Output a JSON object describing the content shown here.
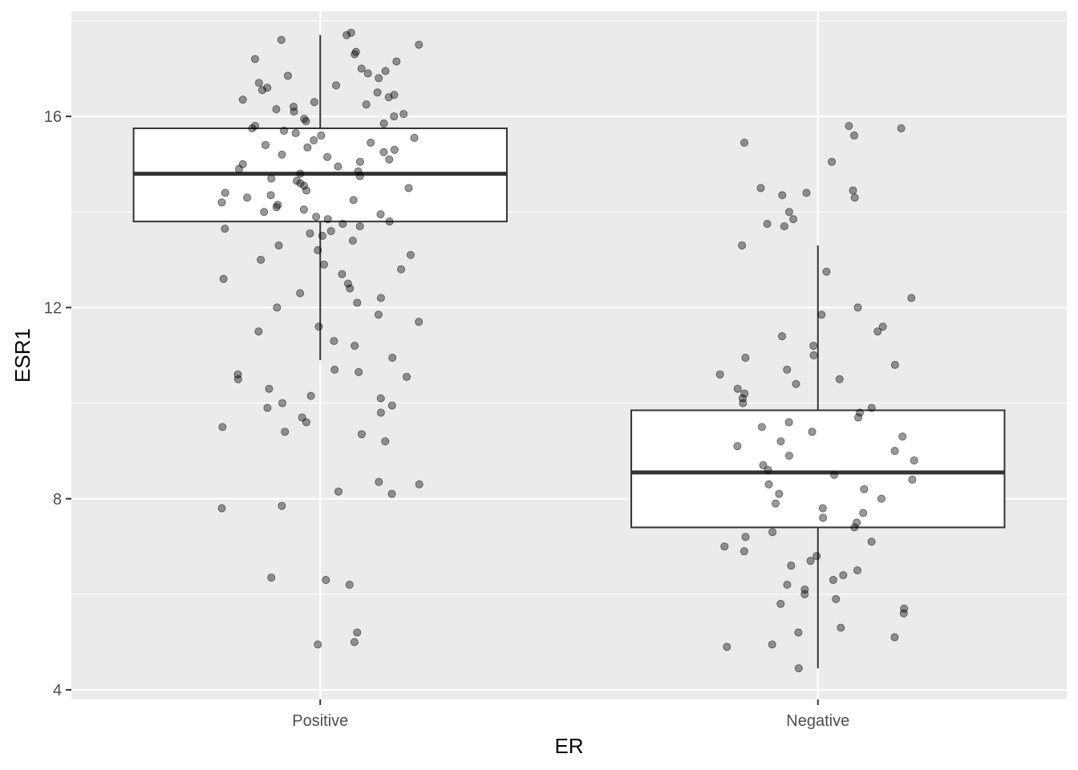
{
  "chart_data": {
    "type": "boxplot",
    "title": "",
    "xlabel": "ER",
    "ylabel": "ESR1",
    "categories": [
      "Positive",
      "Negative"
    ],
    "ylim": [
      3.8,
      18.2
    ],
    "yticks": [
      4,
      8,
      12,
      16
    ],
    "y_tick_labels": [
      "4",
      "8",
      "12",
      "16"
    ],
    "grid": true,
    "legend": "none",
    "boxes": [
      {
        "category": "Positive",
        "lower_whisker": 10.9,
        "q1": 13.8,
        "median": 14.8,
        "q3": 15.75,
        "upper_whisker": 17.7
      },
      {
        "category": "Negative",
        "lower_whisker": 4.45,
        "q1": 7.4,
        "median": 8.55,
        "q3": 9.85,
        "upper_whisker": 13.3
      }
    ],
    "jitter_points": [
      {
        "category": "Positive",
        "values": [
          17.75,
          17.6,
          17.7,
          17.5,
          17.35,
          17.3,
          17.2,
          17.15,
          17.0,
          16.95,
          16.9,
          16.85,
          16.8,
          16.7,
          16.65,
          16.6,
          16.55,
          16.5,
          16.45,
          16.4,
          16.35,
          16.3,
          16.25,
          16.2,
          16.15,
          16.1,
          16.05,
          16.0,
          15.95,
          15.9,
          15.85,
          15.8,
          15.75,
          15.7,
          15.65,
          15.6,
          15.55,
          15.5,
          15.45,
          15.4,
          15.35,
          15.3,
          15.25,
          15.2,
          15.15,
          15.1,
          15.05,
          15.0,
          14.95,
          14.9,
          14.85,
          14.8,
          14.75,
          14.7,
          14.65,
          14.6,
          14.55,
          14.5,
          14.45,
          14.4,
          14.35,
          14.3,
          14.25,
          14.2,
          14.15,
          14.1,
          14.05,
          14.0,
          13.95,
          13.9,
          13.85,
          13.8,
          13.75,
          13.7,
          13.65,
          13.6,
          13.55,
          13.5,
          13.4,
          13.3,
          13.2,
          13.1,
          13.0,
          12.9,
          12.8,
          12.7,
          12.6,
          12.5,
          12.4,
          12.3,
          12.2,
          12.1,
          12.0,
          11.85,
          11.7,
          11.6,
          11.5,
          11.3,
          11.2,
          10.95,
          10.7,
          10.65,
          10.6,
          10.55,
          10.5,
          10.3,
          10.15,
          10.1,
          10.0,
          9.95,
          9.9,
          9.8,
          9.7,
          9.6,
          9.5,
          9.4,
          9.35,
          9.2,
          8.35,
          8.3,
          8.15,
          8.1,
          7.85,
          7.8,
          6.35,
          6.3,
          6.2,
          5.2,
          5.0,
          4.95
        ]
      },
      {
        "category": "Negative",
        "values": [
          15.8,
          15.75,
          15.6,
          15.45,
          15.05,
          14.5,
          14.45,
          14.4,
          14.35,
          14.3,
          14.0,
          13.85,
          13.75,
          13.7,
          13.3,
          12.75,
          12.2,
          12.0,
          11.85,
          11.6,
          11.5,
          11.4,
          11.2,
          11.0,
          10.95,
          10.8,
          10.7,
          10.6,
          10.5,
          10.4,
          10.3,
          10.2,
          10.1,
          10.0,
          9.9,
          9.8,
          9.7,
          9.6,
          9.5,
          9.4,
          9.3,
          9.2,
          9.1,
          9.0,
          8.9,
          8.8,
          8.7,
          8.6,
          8.5,
          8.4,
          8.3,
          8.2,
          8.1,
          8.0,
          7.9,
          7.8,
          7.7,
          7.6,
          7.5,
          7.4,
          7.3,
          7.2,
          7.1,
          7.0,
          6.9,
          6.8,
          6.7,
          6.6,
          6.5,
          6.4,
          6.3,
          6.2,
          6.1,
          6.0,
          5.9,
          5.8,
          5.7,
          5.6,
          5.3,
          5.2,
          5.1,
          4.95,
          4.9,
          4.45
        ]
      }
    ],
    "colors": {
      "panel_background": "#ebebeb",
      "grid_major": "#ffffff",
      "box_fill": "#ffffff",
      "box_stroke": "#333333",
      "point": "#000000"
    }
  }
}
